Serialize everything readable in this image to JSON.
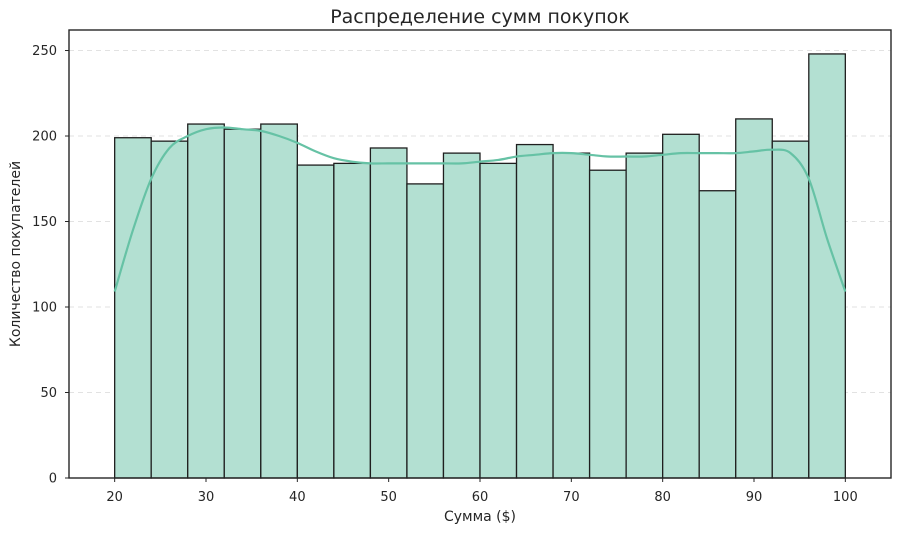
{
  "chart_data": {
    "type": "bar",
    "title": "Распределение сумм покупок",
    "xlabel": "Сумма ($)",
    "ylabel": "Количество покупателей",
    "xlim": [
      15,
      105
    ],
    "ylim": [
      0,
      262
    ],
    "xticks": [
      20,
      30,
      40,
      50,
      60,
      70,
      80,
      90,
      100
    ],
    "yticks": [
      0,
      50,
      100,
      150,
      200,
      250
    ],
    "grid": "horizontal dashed",
    "bin_edges": [
      20,
      24,
      28,
      32,
      36,
      40,
      44,
      48,
      52,
      56,
      60,
      64,
      68,
      72,
      76,
      80,
      84,
      88,
      92,
      96,
      100
    ],
    "values": [
      199,
      197,
      207,
      204,
      207,
      183,
      184,
      193,
      172,
      190,
      184,
      195,
      190,
      180,
      190,
      201,
      168,
      210,
      197,
      248
    ],
    "kde": {
      "x": [
        20,
        22,
        24,
        26,
        28,
        30,
        32,
        34,
        36,
        38,
        40,
        42,
        44,
        46,
        48,
        50,
        52,
        54,
        56,
        58,
        60,
        62,
        64,
        66,
        68,
        70,
        72,
        74,
        76,
        78,
        80,
        82,
        84,
        86,
        88,
        90,
        92,
        94,
        96,
        98,
        100
      ],
      "y": [
        109,
        145,
        175,
        193,
        200,
        204,
        205,
        204,
        203,
        200,
        196,
        191,
        187,
        185,
        184,
        184,
        184,
        184,
        184,
        184,
        185,
        186,
        188,
        189,
        190,
        190,
        189,
        188,
        188,
        188,
        189,
        190,
        190,
        190,
        190,
        191,
        192,
        190,
        175,
        140,
        109
      ]
    },
    "colors": {
      "bar_fill": "#b3e0d2",
      "bar_edge": "#1f1f1f",
      "kde_line": "#66c2a5",
      "grid": "#e2e2e2",
      "axes": "#262626"
    }
  }
}
